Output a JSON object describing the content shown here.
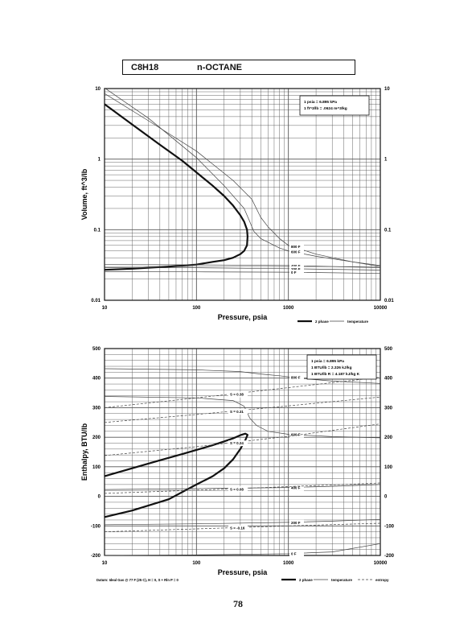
{
  "page": {
    "formula": "C8H18",
    "name": "n-OCTANE",
    "page_number": "78"
  },
  "chart_data": [
    {
      "type": "line",
      "xscale": "log",
      "yscale": "log",
      "xlim": [
        10,
        10000
      ],
      "ylim": [
        0.01,
        10
      ],
      "xlabel": "Pressure,  psia",
      "ylabel": "Volume, ft^3/lb",
      "x_ticks": [
        "10",
        "100",
        "1000",
        "10000"
      ],
      "y_ticks": [
        "0.01",
        "0.1",
        "1",
        "10"
      ],
      "y_ticks_right": [
        "0.01",
        "0.1",
        "1",
        "10"
      ],
      "grid": true,
      "note": [
        "1 psia  =  6.895 kPa",
        "1 ft^3/lb  =  .0624 m^3/kg"
      ],
      "legend": {
        "phase": "2 phase",
        "temperature": "temperature"
      },
      "series": [
        {
          "kind": "2 phase",
          "x": [
            10,
            20,
            40,
            70,
            100,
            150,
            200,
            250,
            300,
            330,
            355,
            360,
            355,
            330,
            300,
            250,
            200,
            150,
            100,
            50,
            20,
            10
          ],
          "y": [
            6.0,
            3.1,
            1.6,
            0.95,
            0.65,
            0.42,
            0.3,
            0.22,
            0.16,
            0.13,
            0.1,
            0.08,
            0.06,
            0.05,
            0.045,
            0.04,
            0.037,
            0.035,
            0.032,
            0.03,
            0.028,
            0.027
          ]
        },
        {
          "kind": "temperature",
          "label": "800 F",
          "x": [
            10,
            30,
            100,
            250,
            400,
            500,
            600,
            800,
            1000,
            2000,
            5000,
            10000
          ],
          "y": [
            8.5,
            3.5,
            1.3,
            0.5,
            0.27,
            0.15,
            0.11,
            0.075,
            0.06,
            0.045,
            0.035,
            0.03
          ]
        },
        {
          "kind": "temperature",
          "label": "600 F",
          "x": [
            10,
            30,
            100,
            200,
            330,
            380,
            420,
            500,
            800,
            1000,
            2000,
            5000,
            10000
          ],
          "y": [
            10.2,
            3.8,
            1.05,
            0.42,
            0.2,
            0.13,
            0.095,
            0.075,
            0.055,
            0.05,
            0.042,
            0.035,
            0.031
          ]
        },
        {
          "kind": "temperature",
          "label": "400 F",
          "x": [
            10,
            100,
            1000,
            10000
          ],
          "y": [
            0.032,
            0.0318,
            0.031,
            0.029
          ]
        },
        {
          "kind": "temperature",
          "label": "200 F",
          "x": [
            10,
            100,
            1000,
            10000
          ],
          "y": [
            0.029,
            0.0288,
            0.028,
            0.0268
          ]
        },
        {
          "kind": "temperature",
          "label": "0 F",
          "x": [
            10,
            100,
            1000,
            10000
          ],
          "y": [
            0.0255,
            0.0253,
            0.025,
            0.024
          ]
        }
      ]
    },
    {
      "type": "line",
      "xscale": "log",
      "xlim": [
        10,
        10000
      ],
      "ylim": [
        -200,
        500
      ],
      "xlabel": "Pressure,  psia",
      "ylabel": "Enthalpy, BTU/lb",
      "x_ticks": [
        "10",
        "100",
        "1000",
        "10000"
      ],
      "y_ticks": [
        "-200",
        "-100",
        "0",
        "100",
        "200",
        "300",
        "400",
        "500"
      ],
      "y_ticks_right": [
        "-200",
        "-100",
        "0",
        "100",
        "200",
        "300",
        "400",
        "500"
      ],
      "grid": true,
      "note": [
        "1 psia  =  6.895 kPa",
        "1 BTU/lb  =  2.326 kJ/kg",
        "1 BTU/lb R  =  4.187 kJ/kg K"
      ],
      "legend": {
        "phase": "2 phase",
        "temperature": "temperature",
        "entropy": "entropy"
      },
      "footnote": "Datum: Ideal Gas @ 77 F (25 C),  H = 0,  S + Rln P = 0",
      "series": [
        {
          "kind": "2 phase",
          "x": [
            10,
            20,
            40,
            70,
            100,
            150,
            200,
            250,
            300,
            340,
            360,
            340,
            300,
            250,
            200,
            150,
            100,
            50,
            20,
            10
          ],
          "y": [
            68,
            95,
            122,
            143,
            157,
            173,
            186,
            196,
            207,
            212,
            208,
            190,
            160,
            125,
            95,
            68,
            40,
            -10,
            -48,
            -70
          ]
        },
        {
          "kind": "temperature",
          "label": "800 F",
          "x": [
            10,
            100,
            300,
            500,
            800,
            1500,
            3000,
            10000
          ],
          "y": [
            432,
            428,
            422,
            414,
            408,
            398,
            390,
            382
          ]
        },
        {
          "kind": "temperature",
          "label": "600 F",
          "x": [
            10,
            100,
            250,
            330,
            380,
            450,
            600,
            1000,
            3000,
            10000
          ],
          "y": [
            338,
            333,
            324,
            305,
            265,
            240,
            220,
            210,
            202,
            198
          ]
        },
        {
          "kind": "temperature",
          "label": "400 F",
          "x": [
            10,
            100,
            1000,
            3000,
            10000
          ],
          "y": [
            23,
            26,
            30,
            34,
            40
          ]
        },
        {
          "kind": "temperature",
          "label": "200 F",
          "x": [
            10,
            100,
            1000,
            3000,
            10000
          ],
          "y": [
            -96,
            -93,
            -88,
            -84,
            -78
          ]
        },
        {
          "kind": "temperature",
          "label": "0 F",
          "x": [
            10,
            100,
            1000,
            3000,
            10000
          ],
          "y": [
            -200,
            -198,
            -194,
            -188,
            -160
          ]
        },
        {
          "kind": "entropy",
          "label": "S = 0.38",
          "x": [
            10,
            100,
            1000,
            10000
          ],
          "y": [
            300,
            333,
            368,
            403
          ]
        },
        {
          "kind": "entropy",
          "label": "S = 0.31",
          "x": [
            10,
            100,
            1000,
            10000
          ],
          "y": [
            250,
            277,
            306,
            336
          ]
        },
        {
          "kind": "entropy",
          "label": "S = 0.24",
          "x": [
            10,
            100,
            1000,
            10000
          ],
          "y": [
            138,
            168,
            203,
            245
          ]
        },
        {
          "kind": "entropy",
          "label": "S = 0.08",
          "x": [
            10,
            100,
            1000,
            10000
          ],
          "y": [
            10,
            21,
            33,
            45
          ]
        },
        {
          "kind": "entropy",
          "label": "S = -0.16",
          "x": [
            10,
            100,
            1000,
            10000
          ],
          "y": [
            -120,
            -110,
            -100,
            -91
          ]
        }
      ]
    }
  ]
}
